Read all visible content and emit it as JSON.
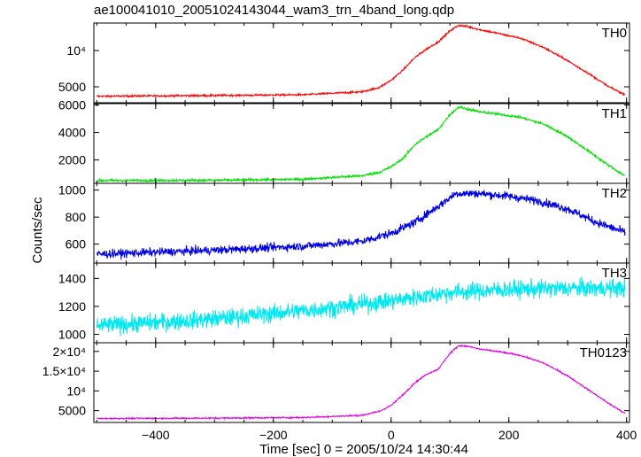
{
  "chart_data": {
    "type": "line",
    "title": "ae100041010_20051024143044_wam3_trn_4band_long.qdp",
    "xlabel": "Time [sec] 0 = 2005/10/24 14:30:44",
    "ylabel": "Counts/sec",
    "xlim": [
      -505,
      405
    ],
    "x_ticks": [
      {
        "value": -400,
        "label": "−400"
      },
      {
        "value": -200,
        "label": "−200"
      },
      {
        "value": 0,
        "label": "0"
      },
      {
        "value": 200,
        "label": "200"
      },
      {
        "value": 400,
        "label": "400"
      }
    ],
    "panels": [
      {
        "name": "TH0",
        "color": "#ff0000",
        "ylim": [
          2800,
          13800
        ],
        "yticks": [
          {
            "value": 5000,
            "label": "5000"
          },
          {
            "value": 10000,
            "label": "10⁴"
          }
        ],
        "noise": 90,
        "x": [
          -500,
          -300,
          -150,
          -50,
          -20,
          0,
          20,
          40,
          60,
          80,
          100,
          115,
          130,
          150,
          180,
          220,
          260,
          300,
          340,
          370,
          395
        ],
        "values": [
          3700,
          3800,
          3900,
          4300,
          4900,
          5900,
          7300,
          9000,
          10200,
          11200,
          12700,
          13500,
          13300,
          12900,
          12400,
          11700,
          10400,
          8600,
          6600,
          5000,
          4000
        ]
      },
      {
        "name": "TH1",
        "color": "#00e000",
        "ylim": [
          300,
          6100
        ],
        "yticks": [
          {
            "value": 2000,
            "label": "2000"
          },
          {
            "value": 4000,
            "label": "4000"
          },
          {
            "value": 6000,
            "label": "6000"
          }
        ],
        "noise": 60,
        "x": [
          -500,
          -300,
          -150,
          -50,
          -20,
          0,
          20,
          40,
          60,
          80,
          100,
          115,
          130,
          150,
          180,
          220,
          260,
          300,
          340,
          370,
          395
        ],
        "values": [
          500,
          520,
          600,
          850,
          1100,
          1500,
          2100,
          3100,
          3700,
          4200,
          5300,
          5850,
          5700,
          5500,
          5350,
          5100,
          4600,
          3700,
          2500,
          1600,
          900
        ]
      },
      {
        "name": "TH2",
        "color": "#0000e0",
        "ylim": [
          460,
          1050
        ],
        "yticks": [
          {
            "value": 600,
            "label": "600"
          },
          {
            "value": 800,
            "label": "800"
          },
          {
            "value": 1000,
            "label": "1000"
          }
        ],
        "noise": 22,
        "x": [
          -500,
          -300,
          -150,
          -50,
          0,
          40,
          80,
          110,
          150,
          200,
          250,
          300,
          350,
          395
        ],
        "values": [
          525,
          555,
          585,
          620,
          680,
          760,
          880,
          975,
          975,
          955,
          920,
          860,
          760,
          690
        ]
      },
      {
        "name": "TH3",
        "color": "#00e8f0",
        "ylim": [
          940,
          1510
        ],
        "yticks": [
          {
            "value": 1000,
            "label": "1000"
          },
          {
            "value": 1200,
            "label": "1200"
          },
          {
            "value": 1400,
            "label": "1400"
          }
        ],
        "noise": 45,
        "x": [
          -500,
          -300,
          -100,
          0,
          100,
          200,
          300,
          395
        ],
        "values": [
          1060,
          1110,
          1190,
          1240,
          1300,
          1320,
          1330,
          1330
        ]
      },
      {
        "name": "TH0123",
        "color": "#e000e0",
        "ylim": [
          2000,
          22200
        ],
        "yticks": [
          {
            "value": 5000,
            "label": "5000"
          },
          {
            "value": 10000,
            "label": "10⁴"
          },
          {
            "value": 15000,
            "label": "1.5×10⁴"
          },
          {
            "value": 20000,
            "label": "2×10⁴"
          }
        ],
        "noise": 130,
        "x": [
          -500,
          -300,
          -150,
          -50,
          -20,
          0,
          20,
          40,
          60,
          80,
          100,
          115,
          130,
          150,
          180,
          220,
          260,
          300,
          340,
          370,
          395
        ],
        "values": [
          3000,
          3100,
          3250,
          3800,
          4800,
          6300,
          9000,
          12000,
          14200,
          15500,
          19500,
          21500,
          21300,
          20600,
          20000,
          19000,
          17000,
          13800,
          9800,
          6800,
          4500
        ]
      }
    ]
  }
}
